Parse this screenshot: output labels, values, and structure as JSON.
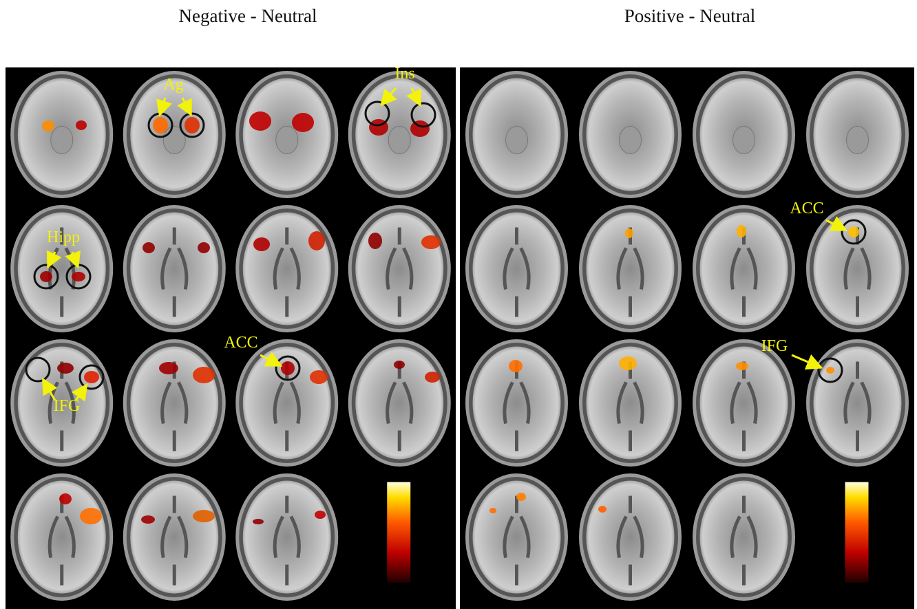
{
  "figure": {
    "panels": [
      {
        "title": "Negative - Neutral",
        "labels": [
          "Ag",
          "Ins",
          "Hipp",
          "ACC",
          "IFG"
        ]
      },
      {
        "title": "Positive - Neutral",
        "labels": [
          "ACC",
          "IFG"
        ]
      }
    ]
  }
}
